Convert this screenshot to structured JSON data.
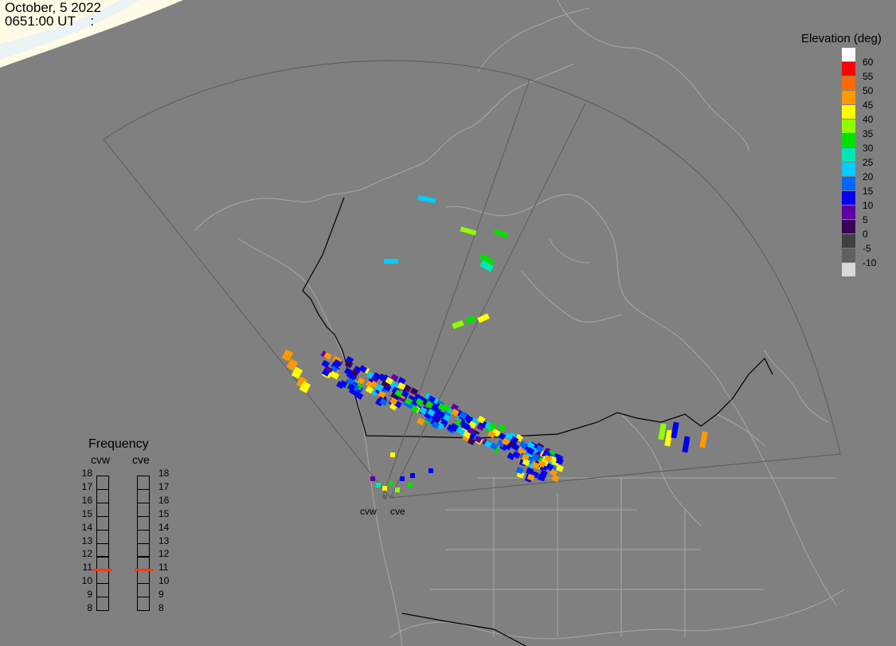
{
  "header": {
    "date": "October, 5 2022",
    "time": "0651:00 UT    :"
  },
  "legend": {
    "title": "Elevation (deg)",
    "entries": [
      {
        "label": "60",
        "color": "#ffffff"
      },
      {
        "label": "55",
        "color": "#ff0000"
      },
      {
        "label": "50",
        "color": "#ff6a00"
      },
      {
        "label": "45",
        "color": "#ff9900"
      },
      {
        "label": "40",
        "color": "#ffff00"
      },
      {
        "label": "35",
        "color": "#8fff00"
      },
      {
        "label": "30",
        "color": "#00e000"
      },
      {
        "label": "25",
        "color": "#00e6b4"
      },
      {
        "label": "20",
        "color": "#00ccff"
      },
      {
        "label": "15",
        "color": "#0066ff"
      },
      {
        "label": "10",
        "color": "#0000ee"
      },
      {
        "label": "5",
        "color": "#5c00a3"
      },
      {
        "label": "0",
        "color": "#3a0055"
      },
      {
        "label": "-5",
        "color": "#404040"
      },
      {
        "label": "-10",
        "color": "#606060"
      },
      {
        "label": "",
        "color": "#d9d9d9"
      }
    ]
  },
  "frequency": {
    "title": "Frequency",
    "radars": [
      {
        "name": "cvw",
        "selected": 11
      },
      {
        "name": "cve",
        "selected": 11
      }
    ],
    "scale": [
      "18",
      "17",
      "16",
      "15",
      "14",
      "13",
      "12",
      "11",
      "10",
      "9",
      "8"
    ]
  },
  "sites": [
    {
      "name": "cvw"
    },
    {
      "name": "cve"
    }
  ],
  "map_colors": {
    "background": "#808080",
    "borders": "#a8a8a8",
    "political": "#000000",
    "fov": "#5a5a5a",
    "daylight": "#fffbe6"
  }
}
